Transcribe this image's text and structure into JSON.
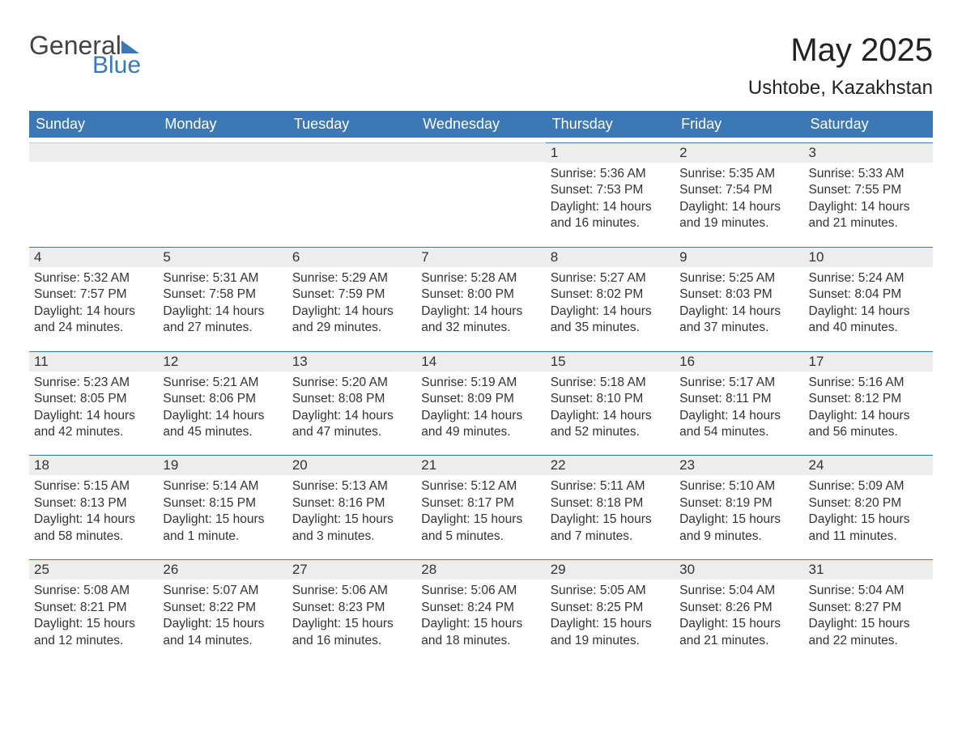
{
  "logo": {
    "text1": "General",
    "text2": "Blue"
  },
  "title": "May 2025",
  "location": "Ushtobe, Kazakhstan",
  "colors": {
    "header_bg": "#3c78b4",
    "header_text": "#ffffff",
    "daynum_bg": "#ededed",
    "daynum_border": "#3c78b4",
    "body_text": "#333333",
    "bg": "#ffffff",
    "logo_gray": "#444444",
    "logo_blue": "#3c78b4"
  },
  "typography": {
    "title_fontsize": 40,
    "location_fontsize": 24,
    "header_fontsize": 18,
    "daynum_fontsize": 17,
    "body_fontsize": 15.5
  },
  "weekdays": [
    "Sunday",
    "Monday",
    "Tuesday",
    "Wednesday",
    "Thursday",
    "Friday",
    "Saturday"
  ],
  "labels": {
    "sunrise": "Sunrise: ",
    "sunset": "Sunset: ",
    "daylight": "Daylight: "
  },
  "weeks": [
    [
      {
        "empty": true
      },
      {
        "empty": true
      },
      {
        "empty": true
      },
      {
        "empty": true
      },
      {
        "n": "1",
        "sunrise": "5:36 AM",
        "sunset": "7:53 PM",
        "daylight": "14 hours and 16 minutes."
      },
      {
        "n": "2",
        "sunrise": "5:35 AM",
        "sunset": "7:54 PM",
        "daylight": "14 hours and 19 minutes."
      },
      {
        "n": "3",
        "sunrise": "5:33 AM",
        "sunset": "7:55 PM",
        "daylight": "14 hours and 21 minutes."
      }
    ],
    [
      {
        "n": "4",
        "sunrise": "5:32 AM",
        "sunset": "7:57 PM",
        "daylight": "14 hours and 24 minutes."
      },
      {
        "n": "5",
        "sunrise": "5:31 AM",
        "sunset": "7:58 PM",
        "daylight": "14 hours and 27 minutes."
      },
      {
        "n": "6",
        "sunrise": "5:29 AM",
        "sunset": "7:59 PM",
        "daylight": "14 hours and 29 minutes."
      },
      {
        "n": "7",
        "sunrise": "5:28 AM",
        "sunset": "8:00 PM",
        "daylight": "14 hours and 32 minutes."
      },
      {
        "n": "8",
        "sunrise": "5:27 AM",
        "sunset": "8:02 PM",
        "daylight": "14 hours and 35 minutes."
      },
      {
        "n": "9",
        "sunrise": "5:25 AM",
        "sunset": "8:03 PM",
        "daylight": "14 hours and 37 minutes."
      },
      {
        "n": "10",
        "sunrise": "5:24 AM",
        "sunset": "8:04 PM",
        "daylight": "14 hours and 40 minutes."
      }
    ],
    [
      {
        "n": "11",
        "sunrise": "5:23 AM",
        "sunset": "8:05 PM",
        "daylight": "14 hours and 42 minutes."
      },
      {
        "n": "12",
        "sunrise": "5:21 AM",
        "sunset": "8:06 PM",
        "daylight": "14 hours and 45 minutes."
      },
      {
        "n": "13",
        "sunrise": "5:20 AM",
        "sunset": "8:08 PM",
        "daylight": "14 hours and 47 minutes."
      },
      {
        "n": "14",
        "sunrise": "5:19 AM",
        "sunset": "8:09 PM",
        "daylight": "14 hours and 49 minutes."
      },
      {
        "n": "15",
        "sunrise": "5:18 AM",
        "sunset": "8:10 PM",
        "daylight": "14 hours and 52 minutes."
      },
      {
        "n": "16",
        "sunrise": "5:17 AM",
        "sunset": "8:11 PM",
        "daylight": "14 hours and 54 minutes."
      },
      {
        "n": "17",
        "sunrise": "5:16 AM",
        "sunset": "8:12 PM",
        "daylight": "14 hours and 56 minutes."
      }
    ],
    [
      {
        "n": "18",
        "sunrise": "5:15 AM",
        "sunset": "8:13 PM",
        "daylight": "14 hours and 58 minutes."
      },
      {
        "n": "19",
        "sunrise": "5:14 AM",
        "sunset": "8:15 PM",
        "daylight": "15 hours and 1 minute."
      },
      {
        "n": "20",
        "sunrise": "5:13 AM",
        "sunset": "8:16 PM",
        "daylight": "15 hours and 3 minutes."
      },
      {
        "n": "21",
        "sunrise": "5:12 AM",
        "sunset": "8:17 PM",
        "daylight": "15 hours and 5 minutes."
      },
      {
        "n": "22",
        "sunrise": "5:11 AM",
        "sunset": "8:18 PM",
        "daylight": "15 hours and 7 minutes."
      },
      {
        "n": "23",
        "sunrise": "5:10 AM",
        "sunset": "8:19 PM",
        "daylight": "15 hours and 9 minutes."
      },
      {
        "n": "24",
        "sunrise": "5:09 AM",
        "sunset": "8:20 PM",
        "daylight": "15 hours and 11 minutes."
      }
    ],
    [
      {
        "n": "25",
        "sunrise": "5:08 AM",
        "sunset": "8:21 PM",
        "daylight": "15 hours and 12 minutes."
      },
      {
        "n": "26",
        "sunrise": "5:07 AM",
        "sunset": "8:22 PM",
        "daylight": "15 hours and 14 minutes."
      },
      {
        "n": "27",
        "sunrise": "5:06 AM",
        "sunset": "8:23 PM",
        "daylight": "15 hours and 16 minutes."
      },
      {
        "n": "28",
        "sunrise": "5:06 AM",
        "sunset": "8:24 PM",
        "daylight": "15 hours and 18 minutes."
      },
      {
        "n": "29",
        "sunrise": "5:05 AM",
        "sunset": "8:25 PM",
        "daylight": "15 hours and 19 minutes."
      },
      {
        "n": "30",
        "sunrise": "5:04 AM",
        "sunset": "8:26 PM",
        "daylight": "15 hours and 21 minutes."
      },
      {
        "n": "31",
        "sunrise": "5:04 AM",
        "sunset": "8:27 PM",
        "daylight": "15 hours and 22 minutes."
      }
    ]
  ]
}
